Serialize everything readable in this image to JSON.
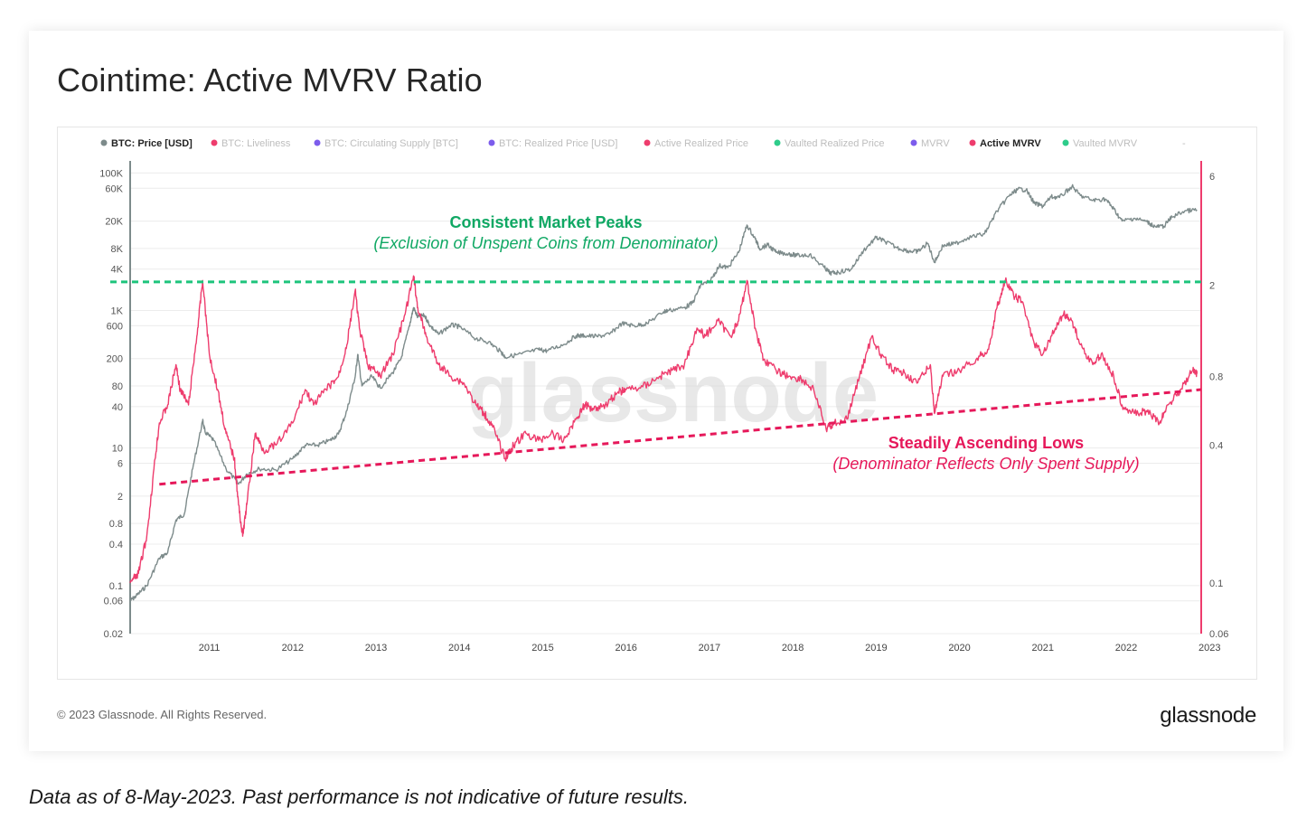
{
  "chart_data": {
    "type": "line",
    "title": "Cointime: Active MVRV Ratio",
    "legend_position": "top",
    "legend": [
      {
        "name": "BTC: Price [USD]",
        "color": "#7d8b8b",
        "active": true
      },
      {
        "name": "BTC: Liveliness",
        "color": "#ee3c6d",
        "active": false
      },
      {
        "name": "BTC: Circulating Supply [BTC]",
        "color": "#7c5cec",
        "active": false
      },
      {
        "name": "BTC: Realized Price [USD]",
        "color": "#7c5cec",
        "active": false
      },
      {
        "name": "Active Realized Price",
        "color": "#ee3c6d",
        "active": false
      },
      {
        "name": "Vaulted Realized Price",
        "color": "#2ecc8a",
        "active": false
      },
      {
        "name": "MVRV",
        "color": "#7c5cec",
        "active": false
      },
      {
        "name": "Active MVRV",
        "color": "#ee3c6d",
        "active": true
      },
      {
        "name": "Vaulted MVRV",
        "color": "#2ecc8a",
        "active": false
      },
      {
        "name": "-",
        "color": "#000000",
        "active": false
      }
    ],
    "x_ticks": [
      "2011",
      "2012",
      "2013",
      "2014",
      "2015",
      "2016",
      "2017",
      "2018",
      "2019",
      "2020",
      "2021",
      "2022",
      "2023"
    ],
    "xlim": [
      2010.55,
      2023.4
    ],
    "y_left": {
      "scale": "log",
      "ylim": [
        0.02,
        150000
      ],
      "ticks": [
        "100K",
        "60K",
        "20K",
        "8K",
        "4K",
        "1K",
        "600",
        "200",
        "80",
        "40",
        "10",
        "6",
        "2",
        "0.8",
        "0.4",
        "0.1",
        "0.06",
        "0.02"
      ]
    },
    "y_right": {
      "scale": "log",
      "ylim": [
        0.06,
        7
      ],
      "ticks": [
        "6",
        "2",
        "0.8",
        "0.4",
        "0.1",
        "0.06"
      ]
    },
    "grid": true,
    "series": [
      {
        "name": "BTC: Price [USD]",
        "axis": "left",
        "color": "#7d8b8b",
        "points": [
          [
            2010.55,
            0.06
          ],
          [
            2010.62,
            0.07
          ],
          [
            2010.75,
            0.1
          ],
          [
            2010.9,
            0.25
          ],
          [
            2011.0,
            0.3
          ],
          [
            2011.1,
            0.9
          ],
          [
            2011.2,
            1.1
          ],
          [
            2011.3,
            5
          ],
          [
            2011.42,
            25
          ],
          [
            2011.45,
            17
          ],
          [
            2011.55,
            13
          ],
          [
            2011.7,
            5
          ],
          [
            2011.85,
            3
          ],
          [
            2011.95,
            4.2
          ],
          [
            2012.1,
            5
          ],
          [
            2012.3,
            4.8
          ],
          [
            2012.5,
            7
          ],
          [
            2012.65,
            11
          ],
          [
            2012.8,
            11
          ],
          [
            2012.95,
            13
          ],
          [
            2013.05,
            16
          ],
          [
            2013.15,
            35
          ],
          [
            2013.25,
            110
          ],
          [
            2013.28,
            230
          ],
          [
            2013.33,
            80
          ],
          [
            2013.45,
            110
          ],
          [
            2013.55,
            75
          ],
          [
            2013.7,
            125
          ],
          [
            2013.8,
            200
          ],
          [
            2013.9,
            600
          ],
          [
            2013.95,
            1100
          ],
          [
            2014.0,
            800
          ],
          [
            2014.08,
            850
          ],
          [
            2014.15,
            600
          ],
          [
            2014.25,
            450
          ],
          [
            2014.4,
            620
          ],
          [
            2014.5,
            580
          ],
          [
            2014.7,
            390
          ],
          [
            2014.85,
            350
          ],
          [
            2015.0,
            250
          ],
          [
            2015.05,
            210
          ],
          [
            2015.25,
            235
          ],
          [
            2015.45,
            270
          ],
          [
            2015.55,
            260
          ],
          [
            2015.75,
            320
          ],
          [
            2015.9,
            430
          ],
          [
            2016.0,
            430
          ],
          [
            2016.15,
            420
          ],
          [
            2016.3,
            450
          ],
          [
            2016.45,
            650
          ],
          [
            2016.6,
            600
          ],
          [
            2016.75,
            650
          ],
          [
            2016.95,
            960
          ],
          [
            2017.0,
            1000
          ],
          [
            2017.2,
            1100
          ],
          [
            2017.3,
            1300
          ],
          [
            2017.4,
            2400
          ],
          [
            2017.5,
            2600
          ],
          [
            2017.62,
            4500
          ],
          [
            2017.72,
            4200
          ],
          [
            2017.85,
            7000
          ],
          [
            2017.95,
            17500
          ],
          [
            2018.05,
            11000
          ],
          [
            2018.1,
            8000
          ],
          [
            2018.2,
            9000
          ],
          [
            2018.3,
            7000
          ],
          [
            2018.45,
            6700
          ],
          [
            2018.55,
            6300
          ],
          [
            2018.7,
            6500
          ],
          [
            2018.88,
            4200
          ],
          [
            2018.95,
            3500
          ],
          [
            2019.05,
            3600
          ],
          [
            2019.2,
            4000
          ],
          [
            2019.35,
            7500
          ],
          [
            2019.5,
            11500
          ],
          [
            2019.6,
            10200
          ],
          [
            2019.75,
            8200
          ],
          [
            2019.9,
            7300
          ],
          [
            2020.0,
            7200
          ],
          [
            2020.12,
            9500
          ],
          [
            2020.2,
            5000
          ],
          [
            2020.3,
            8800
          ],
          [
            2020.45,
            9400
          ],
          [
            2020.6,
            11500
          ],
          [
            2020.8,
            13000
          ],
          [
            2020.95,
            28000
          ],
          [
            2021.1,
            47000
          ],
          [
            2021.2,
            58000
          ],
          [
            2021.3,
            57000
          ],
          [
            2021.4,
            36000
          ],
          [
            2021.5,
            33000
          ],
          [
            2021.6,
            45000
          ],
          [
            2021.7,
            44000
          ],
          [
            2021.85,
            64000
          ],
          [
            2021.95,
            47000
          ],
          [
            2022.1,
            40000
          ],
          [
            2022.25,
            42000
          ],
          [
            2022.35,
            30000
          ],
          [
            2022.45,
            20000
          ],
          [
            2022.6,
            22000
          ],
          [
            2022.75,
            19500
          ],
          [
            2022.85,
            16500
          ],
          [
            2022.95,
            16800
          ],
          [
            2023.05,
            23000
          ],
          [
            2023.2,
            28000
          ],
          [
            2023.35,
            29000
          ]
        ]
      },
      {
        "name": "Active MVRV",
        "axis": "right",
        "color": "#ee3c6d",
        "points": [
          [
            2010.55,
            0.1
          ],
          [
            2010.65,
            0.11
          ],
          [
            2010.75,
            0.16
          ],
          [
            2010.85,
            0.35
          ],
          [
            2010.9,
            0.5
          ],
          [
            2011.0,
            0.6
          ],
          [
            2011.1,
            0.9
          ],
          [
            2011.15,
            0.7
          ],
          [
            2011.25,
            0.6
          ],
          [
            2011.35,
            1.2
          ],
          [
            2011.42,
            2.1
          ],
          [
            2011.5,
            1.0
          ],
          [
            2011.6,
            0.7
          ],
          [
            2011.7,
            0.45
          ],
          [
            2011.8,
            0.35
          ],
          [
            2011.85,
            0.22
          ],
          [
            2011.9,
            0.16
          ],
          [
            2011.95,
            0.22
          ],
          [
            2012.05,
            0.45
          ],
          [
            2012.15,
            0.38
          ],
          [
            2012.3,
            0.4
          ],
          [
            2012.5,
            0.5
          ],
          [
            2012.65,
            0.7
          ],
          [
            2012.75,
            0.6
          ],
          [
            2012.9,
            0.7
          ],
          [
            2013.05,
            0.8
          ],
          [
            2013.15,
            1.1
          ],
          [
            2013.25,
            1.9
          ],
          [
            2013.3,
            1.3
          ],
          [
            2013.4,
            0.9
          ],
          [
            2013.55,
            0.8
          ],
          [
            2013.7,
            1.0
          ],
          [
            2013.85,
            1.5
          ],
          [
            2013.95,
            2.2
          ],
          [
            2014.0,
            1.6
          ],
          [
            2014.1,
            1.2
          ],
          [
            2014.25,
            0.9
          ],
          [
            2014.4,
            0.8
          ],
          [
            2014.55,
            0.75
          ],
          [
            2014.7,
            0.6
          ],
          [
            2014.8,
            0.55
          ],
          [
            2014.9,
            0.48
          ],
          [
            2015.05,
            0.35
          ],
          [
            2015.15,
            0.4
          ],
          [
            2015.3,
            0.45
          ],
          [
            2015.45,
            0.42
          ],
          [
            2015.6,
            0.45
          ],
          [
            2015.75,
            0.42
          ],
          [
            2015.9,
            0.52
          ],
          [
            2016.0,
            0.6
          ],
          [
            2016.1,
            0.58
          ],
          [
            2016.25,
            0.6
          ],
          [
            2016.4,
            0.68
          ],
          [
            2016.5,
            0.7
          ],
          [
            2016.7,
            0.72
          ],
          [
            2016.9,
            0.8
          ],
          [
            2017.05,
            0.85
          ],
          [
            2017.2,
            0.9
          ],
          [
            2017.35,
            1.3
          ],
          [
            2017.45,
            1.2
          ],
          [
            2017.6,
            1.4
          ],
          [
            2017.75,
            1.2
          ],
          [
            2017.85,
            1.4
          ],
          [
            2017.95,
            2.1
          ],
          [
            2018.05,
            1.3
          ],
          [
            2018.15,
            0.95
          ],
          [
            2018.3,
            0.85
          ],
          [
            2018.45,
            0.8
          ],
          [
            2018.6,
            0.78
          ],
          [
            2018.75,
            0.7
          ],
          [
            2018.9,
            0.47
          ],
          [
            2019.0,
            0.5
          ],
          [
            2019.15,
            0.52
          ],
          [
            2019.3,
            0.8
          ],
          [
            2019.45,
            1.2
          ],
          [
            2019.55,
            1.0
          ],
          [
            2019.7,
            0.85
          ],
          [
            2019.85,
            0.82
          ],
          [
            2020.0,
            0.75
          ],
          [
            2020.15,
            0.9
          ],
          [
            2020.2,
            0.55
          ],
          [
            2020.3,
            0.8
          ],
          [
            2020.5,
            0.85
          ],
          [
            2020.7,
            0.95
          ],
          [
            2020.85,
            1.05
          ],
          [
            2020.95,
            1.6
          ],
          [
            2021.05,
            2.1
          ],
          [
            2021.15,
            1.8
          ],
          [
            2021.25,
            1.7
          ],
          [
            2021.4,
            1.1
          ],
          [
            2021.5,
            1.0
          ],
          [
            2021.65,
            1.3
          ],
          [
            2021.75,
            1.5
          ],
          [
            2021.85,
            1.4
          ],
          [
            2021.95,
            1.1
          ],
          [
            2022.1,
            0.9
          ],
          [
            2022.2,
            1.0
          ],
          [
            2022.35,
            0.8
          ],
          [
            2022.45,
            0.6
          ],
          [
            2022.6,
            0.55
          ],
          [
            2022.75,
            0.56
          ],
          [
            2022.9,
            0.5
          ],
          [
            2023.0,
            0.6
          ],
          [
            2023.15,
            0.7
          ],
          [
            2023.3,
            0.85
          ],
          [
            2023.35,
            0.82
          ]
        ]
      }
    ],
    "reference_lines": [
      {
        "name": "peaks",
        "axis": "right",
        "value": 2.07,
        "color": "#1ec47c",
        "style": "dashed"
      },
      {
        "name": "lows",
        "axis": "right",
        "from": [
          2010.9,
          0.27
        ],
        "to": [
          2023.4,
          0.7
        ],
        "color": "#e6185a",
        "style": "dashed"
      }
    ],
    "annotations": [
      {
        "id": "peaks",
        "title": "Consistent Market Peaks",
        "subtitle": "(Exclusion of Unspent Coins from Denominator)",
        "color": "#10a864"
      },
      {
        "id": "lows",
        "title": "Steadily Ascending Lows",
        "subtitle": "(Denominator Reflects Only Spent Supply)",
        "color": "#e6185a"
      }
    ],
    "watermark": "glassnode"
  },
  "footer": {
    "copyright": "© 2023 Glassnode. All Rights Reserved.",
    "logo": "glassnode"
  },
  "caption": "Data as of 8-May-2023. Past performance is not indicative of future results."
}
